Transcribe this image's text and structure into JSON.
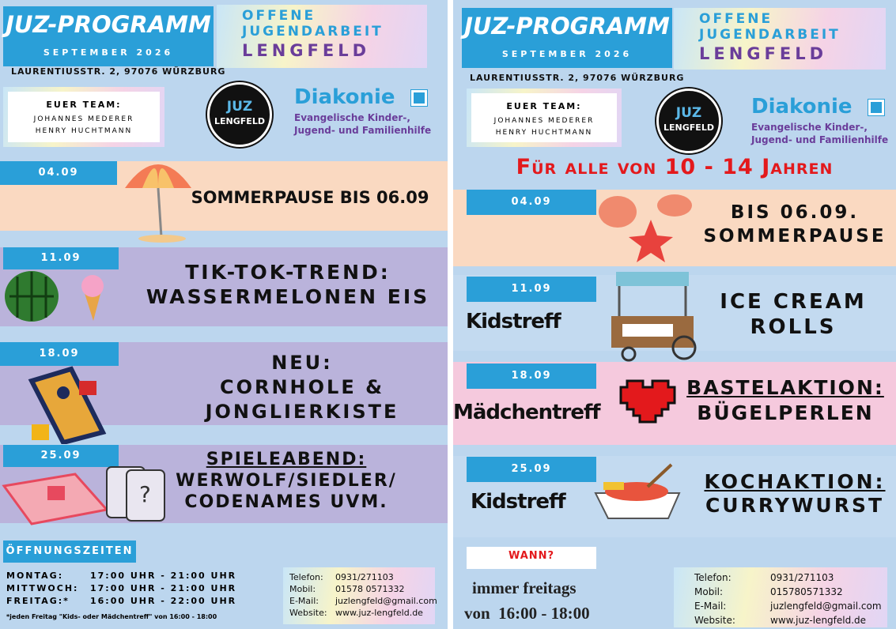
{
  "left": {
    "header": {
      "title": "JUZ-PROGRAMM",
      "month": "SEPTEMBER 2026",
      "org": [
        "OFFENE",
        "JUGENDARBEIT",
        "LENGFELD"
      ],
      "address": "LAURENTIUSSTR. 2, 97076 WÜRZBURG"
    },
    "team": {
      "label": "EUER TEAM:",
      "members": [
        "JOHANNES MEDERER",
        "HENRY HUCHTMANN"
      ]
    },
    "logo": [
      "JUZ",
      "LENGFELD"
    ],
    "diakonie": {
      "name": "Diakonie",
      "lines": [
        "Evangelische Kinder-,",
        "Jugend- und Familienhilfe"
      ]
    },
    "events": [
      {
        "date": "04.09",
        "lines": [
          "SOMMERPAUSE BIS 06.09"
        ]
      },
      {
        "date": "11.09",
        "lines": [
          "TIK-TOK-TREND:",
          "WASSERMELONEN EIS"
        ]
      },
      {
        "date": "18.09",
        "lines": [
          "NEU:",
          "CORNHOLE &",
          "JONGLIERKISTE"
        ]
      },
      {
        "date": "25.09",
        "lines": [
          "SPIELEABEND:",
          "WERWOLF/SIEDLER/",
          "CODENAMES UVM."
        ]
      }
    ],
    "hours": {
      "title": "ÖFFNUNGSZEITEN",
      "rows": [
        [
          "MONTAG:",
          "17:00 UHR - 21:00 UHR"
        ],
        [
          "MITTWOCH:",
          "17:00 UHR - 21:00 UHR"
        ],
        [
          "FREITAG:*",
          "16:00 UHR - 22:00 UHR"
        ]
      ],
      "note": "*jeden Freitag \"Kids- oder Mädchentreff\" von 16:00 - 18:00"
    },
    "contact": [
      [
        "Telefon:",
        "0931/271103"
      ],
      [
        "Mobil:",
        "01578 0571332"
      ],
      [
        "E-Mail:",
        "juzlengfeld@gmail.com"
      ],
      [
        "Website:",
        "www.juz-lengfeld.de"
      ]
    ]
  },
  "right": {
    "header": {
      "title": "JUZ-PROGRAMM",
      "month": "SEPTEMBER 2026",
      "org": [
        "OFFENE",
        "JUGENDARBEIT",
        "LENGFELD"
      ],
      "address": "LAURENTIUSSTR. 2, 97076 WÜRZBURG"
    },
    "team": {
      "label": "EUER TEAM:",
      "members": [
        "JOHANNES MEDERER",
        "HENRY HUCHTMANN"
      ]
    },
    "logo": [
      "JUZ",
      "LENGFELD"
    ],
    "diakonie": {
      "name": "Diakonie",
      "lines": [
        "Evangelische Kinder-,",
        "Jugend- und Familienhilfe"
      ]
    },
    "subtitle": "Für alle von 10 - 14 Jahren",
    "events": [
      {
        "date": "04.09",
        "lines": [
          "BIS 06.09.",
          "SOMMERPAUSE"
        ]
      },
      {
        "date": "11.09",
        "tag": "Kidstreff",
        "lines": [
          "ICE CREAM",
          "ROLLS"
        ]
      },
      {
        "date": "18.09",
        "tag": "Mädchentreff",
        "lines": [
          "BASTELAKTION:",
          "BÜGELPERLEN"
        ]
      },
      {
        "date": "25.09",
        "tag": "Kidstreff",
        "lines": [
          "KOCHAKTION:",
          "CURRYWURST"
        ]
      }
    ],
    "when": {
      "label": "WANN?",
      "lines": [
        "immer freitags",
        "von  16:00 - 18:00"
      ]
    },
    "contact": [
      [
        "Telefon:",
        "0931/271103"
      ],
      [
        "Mobil:",
        "015780571332"
      ],
      [
        "E-Mail:",
        "juzlengfeld@gmail.com"
      ],
      [
        "Website:",
        "www.juz-lengfeld.de"
      ]
    ]
  }
}
